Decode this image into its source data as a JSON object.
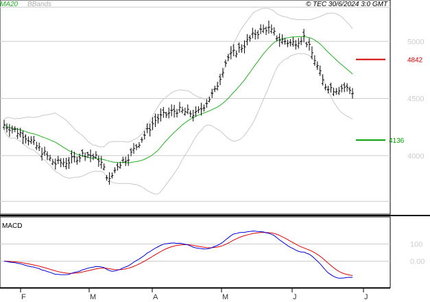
{
  "header": {
    "legend_ma": "MA20",
    "legend_bb": "BBands",
    "copyright": "© TEC 30/6/2024 3:0 GMT"
  },
  "colors": {
    "price": "#000000",
    "ma": "#22b022",
    "bbands": "#c8c8c8",
    "resistance": "#d00000",
    "support": "#00a000",
    "macd": "#0000dd",
    "signal": "#dd0000",
    "grid": "#cccccc"
  },
  "chart_data": [
    {
      "type": "ohlc",
      "ylim": [
        3500,
        5350
      ],
      "yticks": [
        {
          "value": 4000,
          "label": "4000"
        },
        {
          "value": 4500,
          "label": "4500"
        },
        {
          "value": 5000,
          "label": "5000"
        }
      ],
      "xticks": [
        "F",
        "M",
        "A",
        "M",
        "J",
        "J"
      ],
      "levels": [
        {
          "name": "resistance",
          "value": 4842,
          "label": "4842"
        },
        {
          "name": "support",
          "value": 4136,
          "label": "4136"
        }
      ],
      "series": [
        {
          "name": "MA20"
        },
        {
          "name": "BBands"
        }
      ]
    },
    {
      "type": "line",
      "title": "MACD",
      "ylim": [
        -150,
        250
      ],
      "yticks": [
        {
          "value": 100,
          "label": "100"
        },
        {
          "value": 0,
          "label": "0.00"
        }
      ],
      "series": [
        {
          "name": "macd"
        },
        {
          "name": "signal"
        }
      ]
    }
  ]
}
